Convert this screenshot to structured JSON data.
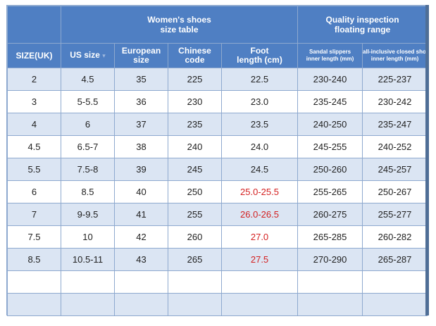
{
  "title": {
    "left_line1": "Women's shoes",
    "left_line2": "size table",
    "right_line1": "Quality inspection",
    "right_line2": "floating range"
  },
  "headers": [
    {
      "line1": "SIZE(UK)",
      "line2": ""
    },
    {
      "line1": "US size",
      "line2": ""
    },
    {
      "line1": "European",
      "line2": "size"
    },
    {
      "line1": "Chinese",
      "line2": "code"
    },
    {
      "line1": "Foot",
      "line2": "length (cm)"
    },
    {
      "line1": "Sandal slippers",
      "line2": "inner length (mm)"
    },
    {
      "line1": "all-inclusive closed shoes",
      "line2": "inner length (mm)"
    }
  ],
  "rows": [
    [
      "2",
      "4.5",
      "35",
      "225",
      "22.5",
      "230-240",
      "225-237"
    ],
    [
      "3",
      "5-5.5",
      "36",
      "230",
      "23.0",
      "235-245",
      "230-242"
    ],
    [
      "4",
      "6",
      "37",
      "235",
      "23.5",
      "240-250",
      "235-247"
    ],
    [
      "4.5",
      "6.5-7",
      "38",
      "240",
      "24.0",
      "245-255",
      "240-252"
    ],
    [
      "5.5",
      "7.5-8",
      "39",
      "245",
      "24.5",
      "250-260",
      "245-257"
    ],
    [
      "6",
      "8.5",
      "40",
      "250",
      "25.0-25.5",
      "255-265",
      "250-267"
    ],
    [
      "7",
      "9-9.5",
      "41",
      "255",
      "26.0-26.5",
      "260-275",
      "255-277"
    ],
    [
      "7.5",
      "10",
      "42",
      "260",
      "27.0",
      "265-285",
      "260-282"
    ],
    [
      "8.5",
      "10.5-11",
      "43",
      "265",
      "27.5",
      "270-290",
      "265-287"
    ]
  ],
  "highlight_color": "#d42020",
  "header_color": "#4f7fc3",
  "stripe_color": "#dbe5f3"
}
